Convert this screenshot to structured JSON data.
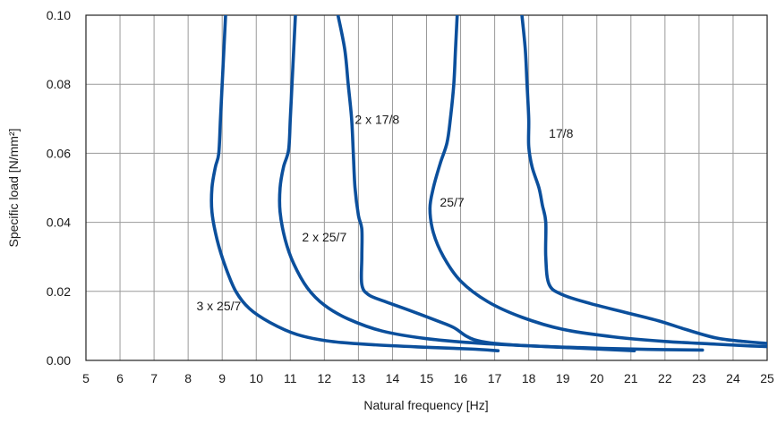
{
  "chart_data": {
    "type": "line",
    "xlabel": "Natural frequency [Hz]",
    "ylabel": "Specific load [N/mm²]",
    "xlim": [
      5,
      25
    ],
    "ylim": [
      0,
      0.1
    ],
    "x_ticks": [
      5,
      6,
      7,
      8,
      9,
      10,
      11,
      12,
      13,
      14,
      15,
      16,
      17,
      18,
      19,
      20,
      21,
      22,
      23,
      24,
      25
    ],
    "y_ticks": [
      0,
      0.02,
      0.04,
      0.06,
      0.08,
      0.1
    ],
    "y_tick_labels": [
      "0.00",
      "0.02",
      "0.04",
      "0.06",
      "0.08",
      "0.10"
    ],
    "grid": true,
    "line_color": "#0b4f9c",
    "series": [
      {
        "name": "3 x 25/7",
        "points": [
          [
            9.1,
            0.1
          ],
          [
            9.05,
            0.09
          ],
          [
            9.0,
            0.08
          ],
          [
            8.95,
            0.07
          ],
          [
            8.9,
            0.06
          ],
          [
            8.8,
            0.056
          ],
          [
            8.7,
            0.05
          ],
          [
            8.7,
            0.043
          ],
          [
            8.85,
            0.035
          ],
          [
            9.1,
            0.027
          ],
          [
            9.4,
            0.02
          ],
          [
            9.8,
            0.015
          ],
          [
            10.4,
            0.011
          ],
          [
            11.2,
            0.0075
          ],
          [
            12.2,
            0.0055
          ],
          [
            13.5,
            0.0045
          ],
          [
            15,
            0.0038
          ],
          [
            16.3,
            0.0033
          ],
          [
            17.1,
            0.0028
          ]
        ]
      },
      {
        "name": "2 x 25/7",
        "points": [
          [
            11.15,
            0.1
          ],
          [
            11.1,
            0.09
          ],
          [
            11.05,
            0.08
          ],
          [
            11.0,
            0.07
          ],
          [
            10.95,
            0.061
          ],
          [
            10.8,
            0.056
          ],
          [
            10.7,
            0.05
          ],
          [
            10.7,
            0.043
          ],
          [
            10.85,
            0.035
          ],
          [
            11.1,
            0.028
          ],
          [
            11.5,
            0.021
          ],
          [
            12,
            0.016
          ],
          [
            12.7,
            0.012
          ],
          [
            13.7,
            0.0085
          ],
          [
            15,
            0.0063
          ],
          [
            16.5,
            0.005
          ],
          [
            18.5,
            0.004
          ],
          [
            20,
            0.0033
          ],
          [
            21.1,
            0.0028
          ]
        ]
      },
      {
        "name": "2 x 17/8",
        "points": [
          [
            12.4,
            0.1
          ],
          [
            12.6,
            0.09
          ],
          [
            12.7,
            0.08
          ],
          [
            12.8,
            0.07
          ],
          [
            12.85,
            0.06
          ],
          [
            12.9,
            0.05
          ],
          [
            13.0,
            0.042
          ],
          [
            13.1,
            0.038
          ],
          [
            13.1,
            0.03
          ],
          [
            13.1,
            0.022
          ],
          [
            13.3,
            0.019
          ],
          [
            13.8,
            0.017
          ],
          [
            14.5,
            0.0145
          ],
          [
            15.3,
            0.0115
          ],
          [
            15.8,
            0.0095
          ],
          [
            16.4,
            0.006
          ],
          [
            17.5,
            0.0045
          ],
          [
            19.5,
            0.0037
          ],
          [
            21.5,
            0.0032
          ],
          [
            23.1,
            0.003
          ]
        ]
      },
      {
        "name": "25/7",
        "points": [
          [
            15.9,
            0.1
          ],
          [
            15.85,
            0.09
          ],
          [
            15.8,
            0.08
          ],
          [
            15.7,
            0.07
          ],
          [
            15.6,
            0.063
          ],
          [
            15.4,
            0.057
          ],
          [
            15.2,
            0.05
          ],
          [
            15.1,
            0.044
          ],
          [
            15.2,
            0.037
          ],
          [
            15.5,
            0.03
          ],
          [
            16,
            0.023
          ],
          [
            16.8,
            0.017
          ],
          [
            17.8,
            0.0125
          ],
          [
            19,
            0.009
          ],
          [
            20.5,
            0.0068
          ],
          [
            22,
            0.0055
          ],
          [
            23.5,
            0.0047
          ],
          [
            24.5,
            0.0042
          ],
          [
            25.5,
            0.0038
          ]
        ]
      },
      {
        "name": "17/8",
        "points": [
          [
            17.8,
            0.1
          ],
          [
            17.9,
            0.09
          ],
          [
            17.95,
            0.08
          ],
          [
            18.0,
            0.07
          ],
          [
            18.0,
            0.062
          ],
          [
            18.1,
            0.056
          ],
          [
            18.3,
            0.05
          ],
          [
            18.4,
            0.045
          ],
          [
            18.5,
            0.04
          ],
          [
            18.5,
            0.03
          ],
          [
            18.6,
            0.022
          ],
          [
            19,
            0.019
          ],
          [
            19.8,
            0.0165
          ],
          [
            20.8,
            0.014
          ],
          [
            21.8,
            0.0115
          ],
          [
            22.6,
            0.009
          ],
          [
            23.5,
            0.0065
          ],
          [
            24.3,
            0.0055
          ],
          [
            25.5,
            0.0045
          ]
        ]
      }
    ],
    "annotations": [
      {
        "text": "3 x 25/7",
        "x": 8.9,
        "y": 0.0145
      },
      {
        "text": "2 x 25/7",
        "x": 12.0,
        "y": 0.0345
      },
      {
        "text": "2 x 17/8",
        "x": 13.55,
        "y": 0.0685
      },
      {
        "text": "25/7",
        "x": 15.75,
        "y": 0.0445
      },
      {
        "text": "17/8",
        "x": 18.95,
        "y": 0.0645
      }
    ]
  }
}
